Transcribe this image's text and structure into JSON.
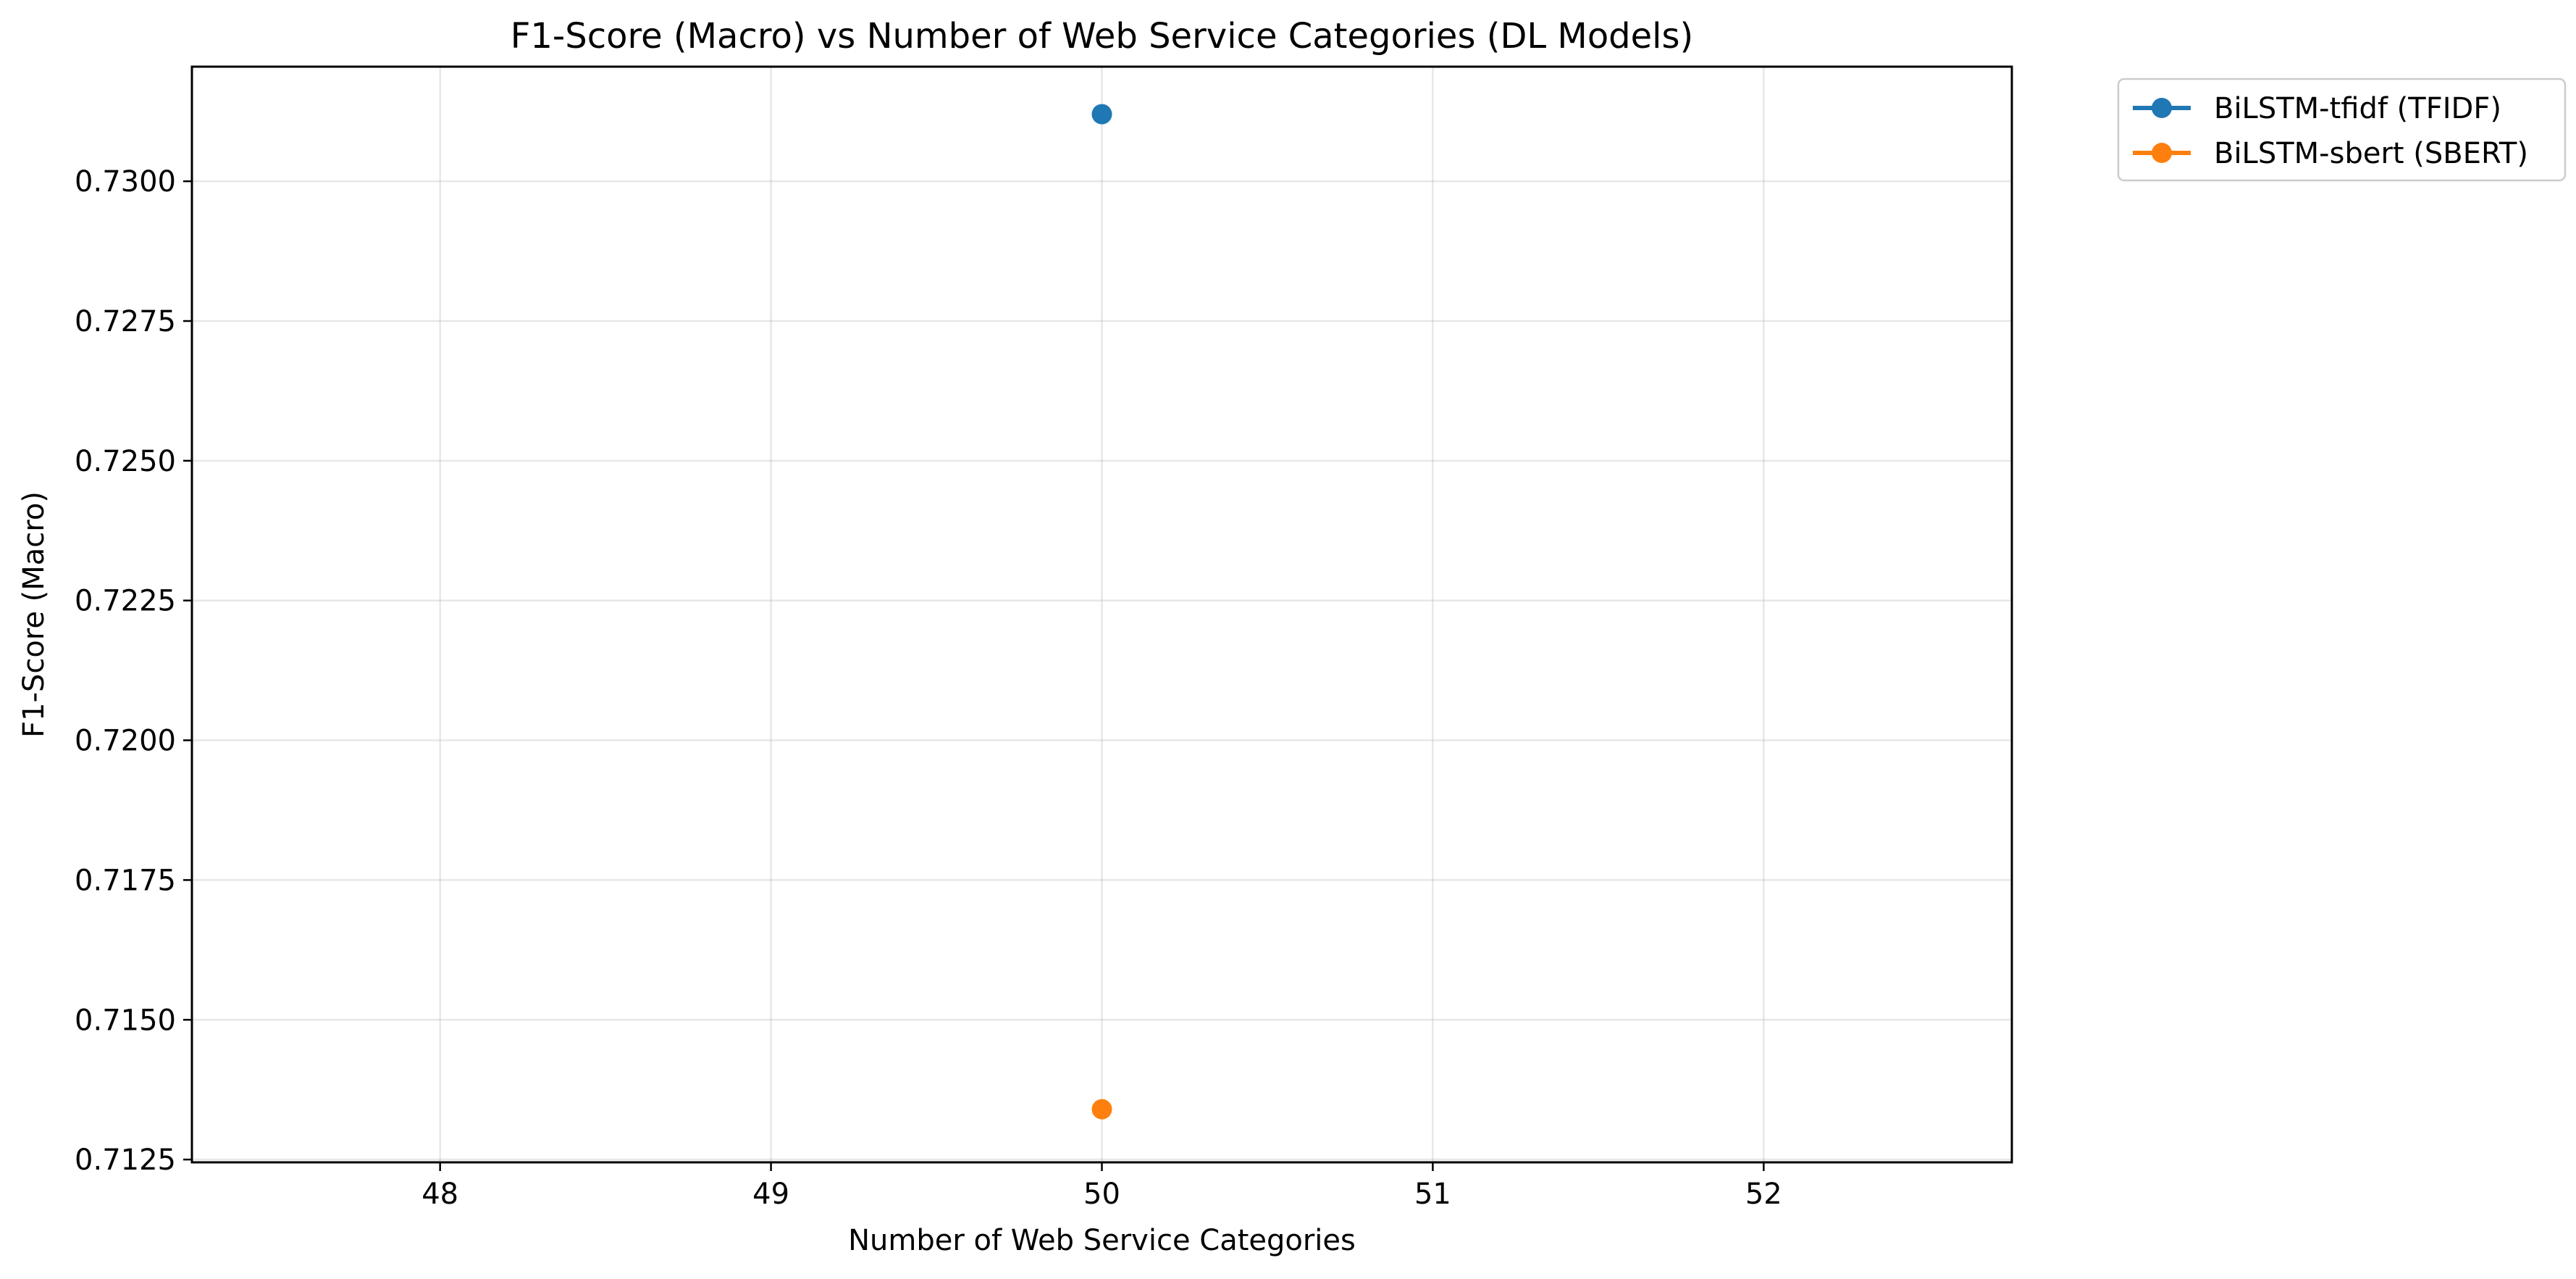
{
  "chart_data": {
    "type": "line",
    "title": "F1-Score (Macro) vs Number of Web Service Categories (DL Models)",
    "xlabel": "Number of Web Service Categories",
    "ylabel": "F1-Score (Macro)",
    "xlim": [
      47.25,
      52.75
    ],
    "ylim": [
      0.71245,
      0.73205
    ],
    "xticks": [
      48,
      49,
      50,
      51,
      52
    ],
    "xtick_labels": [
      "48",
      "49",
      "50",
      "51",
      "52"
    ],
    "yticks": [
      0.7125,
      0.715,
      0.7175,
      0.72,
      0.7225,
      0.725,
      0.7275,
      0.73
    ],
    "ytick_labels": [
      "0.7125",
      "0.7150",
      "0.7175",
      "0.7200",
      "0.7225",
      "0.7250",
      "0.7275",
      "0.7300"
    ],
    "grid": true,
    "legend_position": "outside-top-right",
    "series": [
      {
        "name": "BiLSTM-tfidf (TFIDF)",
        "color": "#1f77b4",
        "marker": "circle",
        "x": [
          50
        ],
        "y": [
          0.7312
        ]
      },
      {
        "name": "BiLSTM-sbert (SBERT)",
        "color": "#ff7f0e",
        "marker": "circle",
        "x": [
          50
        ],
        "y": [
          0.7134
        ]
      }
    ]
  }
}
